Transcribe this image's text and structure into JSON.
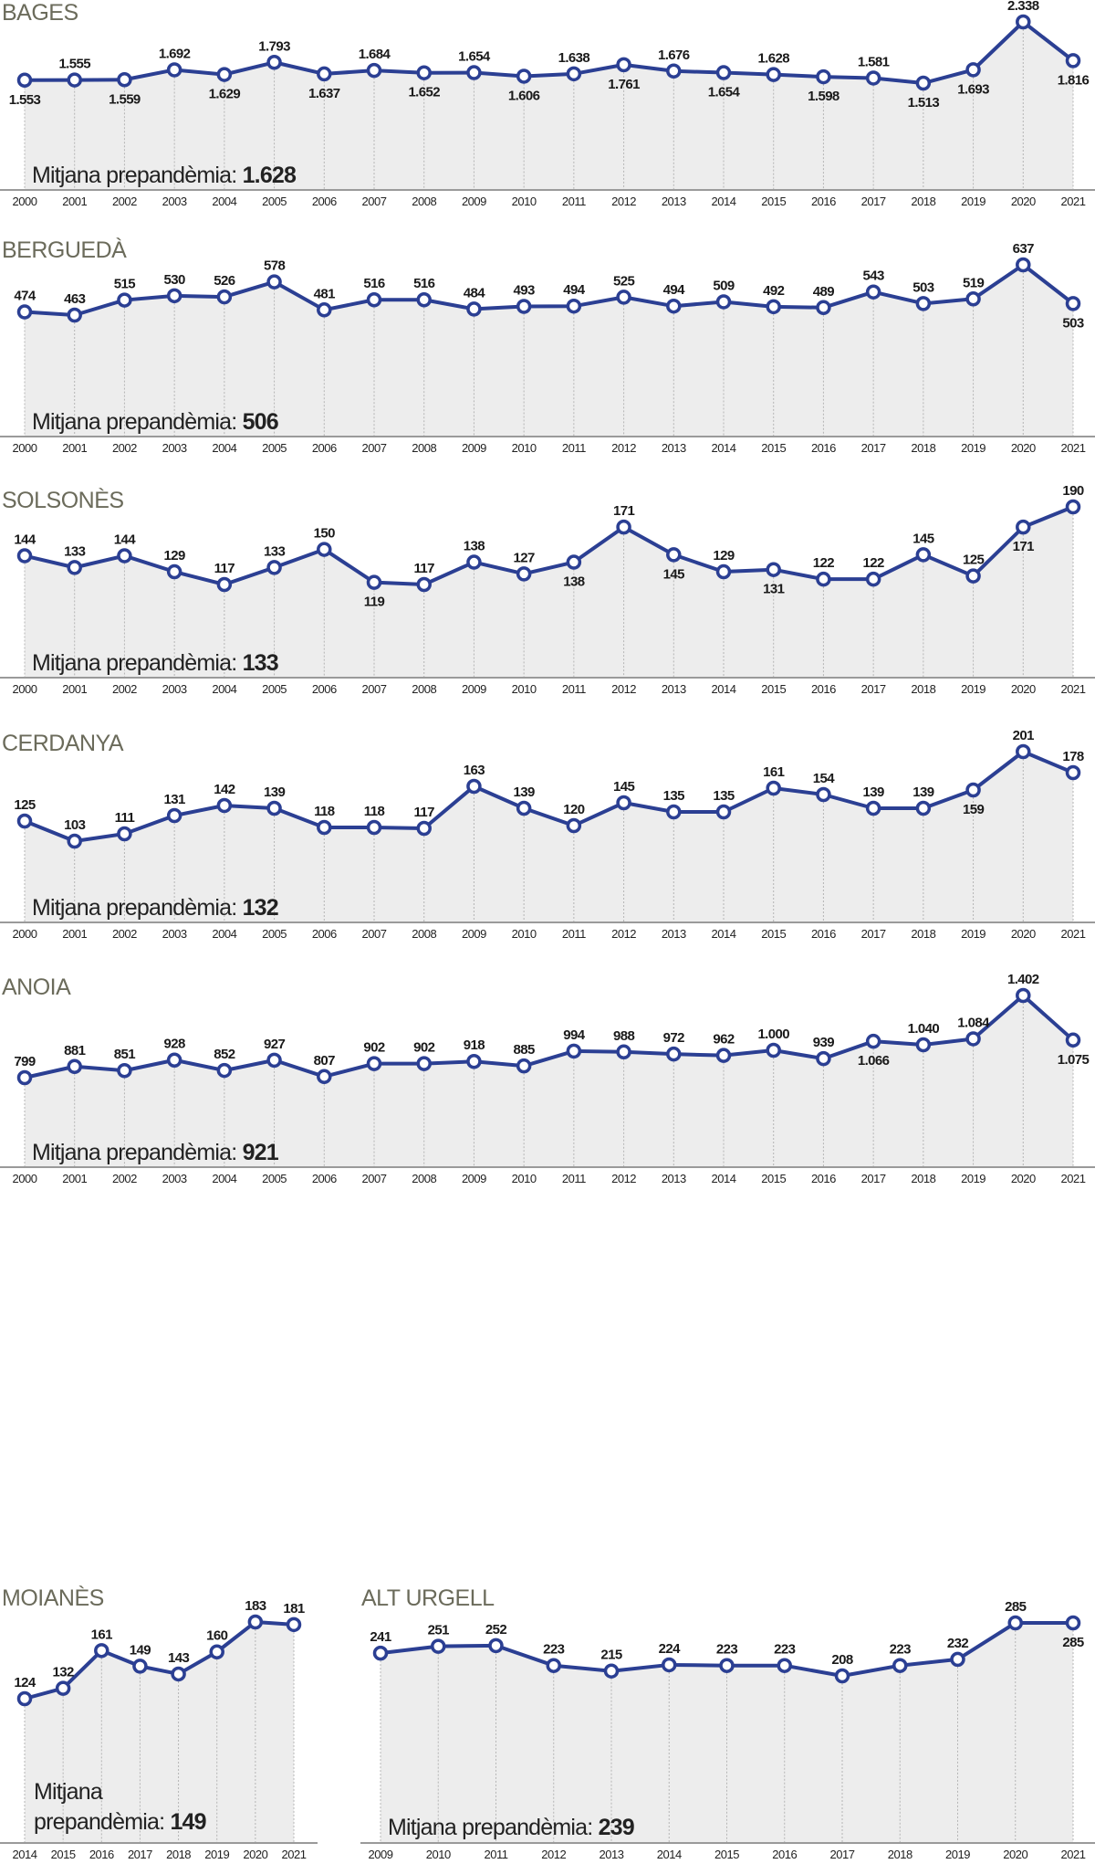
{
  "colors": {
    "line": "#2b3f93",
    "area": "#ededed",
    "title": "#6b6b5b"
  },
  "avg_label": "Mitjana prepandèmia: ",
  "avg_label_line1": "Mitjana",
  "avg_label_line2": "prepandèmia: ",
  "chart_data": [
    {
      "type": "line",
      "title": "BAGES",
      "average": "1.628",
      "x": [
        2000,
        2001,
        2002,
        2003,
        2004,
        2005,
        2006,
        2007,
        2008,
        2009,
        2010,
        2011,
        2012,
        2013,
        2014,
        2015,
        2016,
        2017,
        2018,
        2019,
        2020,
        2021
      ],
      "values": [
        1553,
        1555,
        1559,
        1692,
        1629,
        1793,
        1637,
        1684,
        1652,
        1654,
        1606,
        1638,
        1761,
        1676,
        1654,
        1628,
        1598,
        1581,
        1513,
        1693,
        2338,
        1816
      ]
    },
    {
      "type": "line",
      "title": "BERGUEDÀ",
      "average": "506",
      "x": [
        2000,
        2001,
        2002,
        2003,
        2004,
        2005,
        2006,
        2007,
        2008,
        2009,
        2010,
        2011,
        2012,
        2013,
        2014,
        2015,
        2016,
        2017,
        2018,
        2019,
        2020,
        2021
      ],
      "values": [
        474,
        463,
        515,
        530,
        526,
        578,
        481,
        516,
        516,
        484,
        493,
        494,
        525,
        494,
        509,
        492,
        489,
        543,
        503,
        519,
        637,
        503
      ]
    },
    {
      "type": "line",
      "title": "SOLSONÈS",
      "average": "133",
      "x": [
        2000,
        2001,
        2002,
        2003,
        2004,
        2005,
        2006,
        2007,
        2008,
        2009,
        2010,
        2011,
        2012,
        2013,
        2014,
        2015,
        2016,
        2017,
        2018,
        2019,
        2020,
        2021
      ],
      "values": [
        144,
        133,
        144,
        129,
        117,
        133,
        150,
        119,
        117,
        138,
        127,
        138,
        171,
        145,
        129,
        131,
        122,
        122,
        145,
        125,
        171,
        190
      ]
    },
    {
      "type": "line",
      "title": "CERDANYA",
      "average": "132",
      "x": [
        2000,
        2001,
        2002,
        2003,
        2004,
        2005,
        2006,
        2007,
        2008,
        2009,
        2010,
        2011,
        2012,
        2013,
        2014,
        2015,
        2016,
        2017,
        2018,
        2019,
        2020,
        2021
      ],
      "values": [
        125,
        103,
        111,
        131,
        142,
        139,
        118,
        118,
        117,
        163,
        139,
        120,
        145,
        135,
        135,
        161,
        154,
        139,
        139,
        159,
        201,
        178
      ]
    },
    {
      "type": "line",
      "title": "ANOIA",
      "average": "921",
      "x": [
        2000,
        2001,
        2002,
        2003,
        2004,
        2005,
        2006,
        2007,
        2008,
        2009,
        2010,
        2011,
        2012,
        2013,
        2014,
        2015,
        2016,
        2017,
        2018,
        2019,
        2020,
        2021
      ],
      "values": [
        799,
        881,
        851,
        928,
        852,
        927,
        807,
        902,
        902,
        918,
        885,
        994,
        988,
        972,
        962,
        1000,
        939,
        1066,
        1040,
        1084,
        1402,
        1075
      ]
    },
    {
      "type": "line",
      "title": "MOIANÈS",
      "average": "149",
      "x": [
        2014,
        2015,
        2016,
        2017,
        2018,
        2019,
        2020,
        2021
      ],
      "values": [
        124,
        132,
        161,
        149,
        143,
        160,
        183,
        181
      ]
    },
    {
      "type": "line",
      "title": "ALT URGELL",
      "average": "239",
      "x": [
        2009,
        2010,
        2011,
        2012,
        2013,
        2014,
        2015,
        2016,
        2017,
        2018,
        2019,
        2020,
        2021
      ],
      "values": [
        241,
        251,
        252,
        223,
        215,
        224,
        223,
        223,
        208,
        223,
        232,
        285,
        285
      ]
    }
  ]
}
